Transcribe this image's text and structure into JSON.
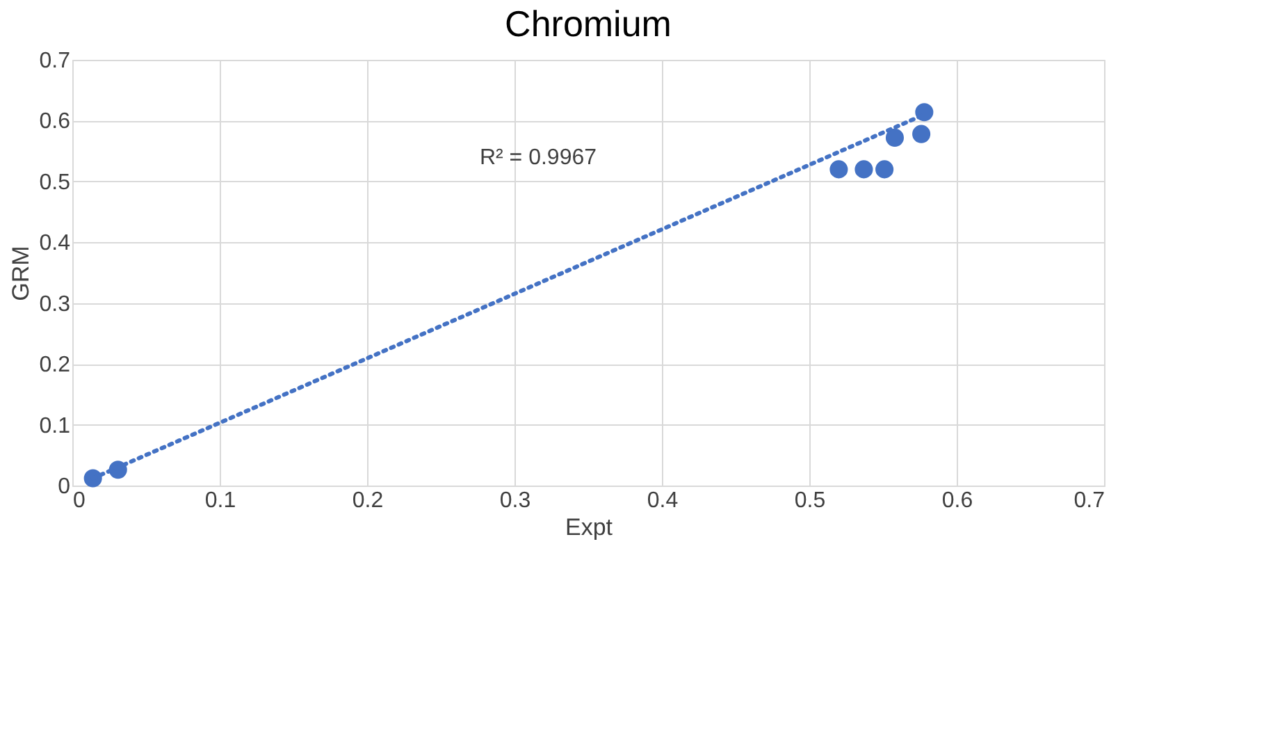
{
  "chart_data": {
    "type": "scatter",
    "title": "Chromium",
    "xlabel": "Expt",
    "ylabel": "GRM",
    "series": [
      {
        "marker": "circle",
        "color": "#4472c4",
        "x": [
          0.014,
          0.031,
          0.52,
          0.537,
          0.551,
          0.558,
          0.576,
          0.578
        ],
        "values": [
          0.012,
          0.026,
          0.52,
          0.52,
          0.52,
          0.572,
          0.578,
          0.614
        ]
      },
      {
        "type": "line",
        "marker": "none",
        "color": "#4472c4",
        "line_style": "dotted",
        "x": [
          0.014,
          0.578
        ],
        "values": [
          0.012,
          0.61
        ]
      }
    ],
    "annotations": [
      "R² = 0.9967"
    ],
    "xlim": [
      0,
      0.7
    ],
    "xticks": [
      0,
      0.1,
      0.2,
      0.3,
      0.4,
      0.5,
      0.6,
      0.7
    ],
    "ylim": [
      0,
      0.7
    ],
    "yticks": [
      0,
      0.1,
      0.2,
      0.3,
      0.4,
      0.5,
      0.6,
      0.7
    ],
    "grid": true
  }
}
